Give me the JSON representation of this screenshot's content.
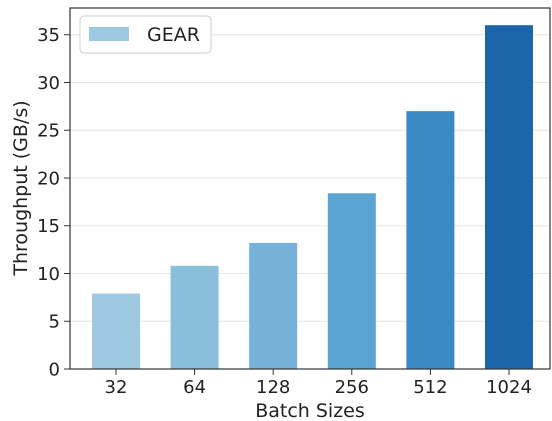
{
  "chart_data": {
    "type": "bar",
    "categories": [
      "32",
      "64",
      "128",
      "256",
      "512",
      "1024"
    ],
    "series": [
      {
        "name": "GEAR",
        "values": [
          7.9,
          10.8,
          13.2,
          18.4,
          27.0,
          36.0
        ],
        "colors": [
          "#9ecae1",
          "#8abedd",
          "#76b1da",
          "#5ba3d3",
          "#3a89c4",
          "#1b65a9"
        ]
      }
    ],
    "xlabel": "Batch Sizes",
    "ylabel": "Throughput (GB/s)",
    "ylim": [
      0,
      37.8
    ],
    "yticks": [
      0,
      5,
      10,
      15,
      20,
      25,
      30,
      35
    ],
    "grid": true,
    "legend": "top-left",
    "legend_color": "#9ecae1"
  }
}
